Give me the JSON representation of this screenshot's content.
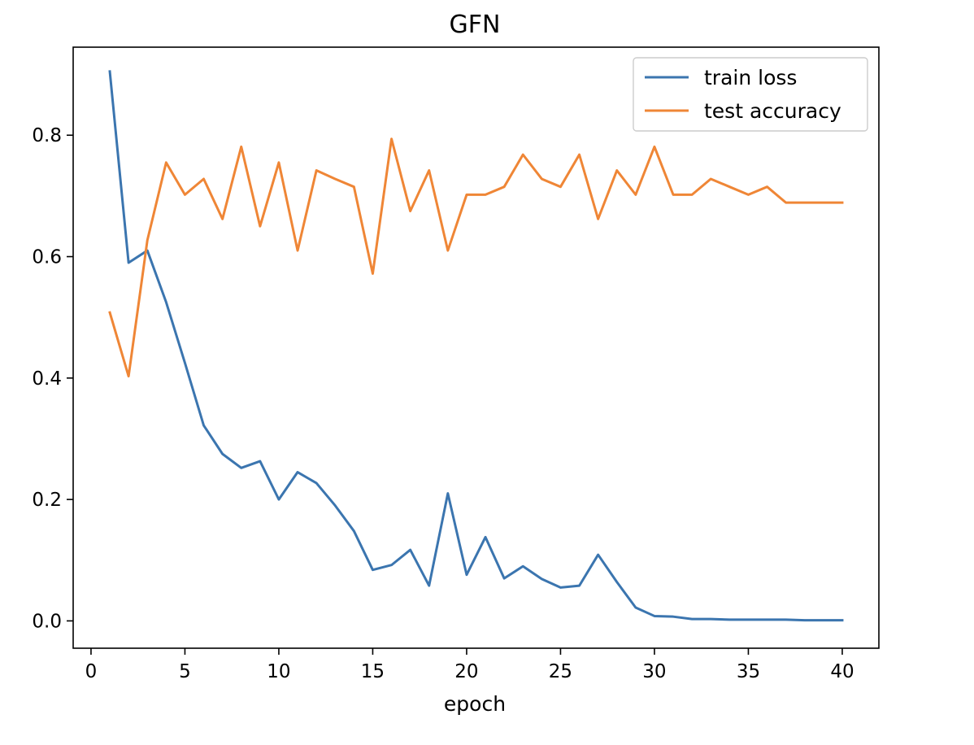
{
  "chart_data": {
    "type": "line",
    "title": "GFN",
    "xlabel": "epoch",
    "ylabel": "",
    "xlim": [
      -0.95,
      41.95
    ],
    "ylim": [
      -0.045,
      0.945
    ],
    "xticks": [
      0,
      5,
      10,
      15,
      20,
      25,
      30,
      35,
      40
    ],
    "xtick_labels": [
      "0",
      "5",
      "10",
      "15",
      "20",
      "25",
      "30",
      "35",
      "40"
    ],
    "yticks": [
      0.0,
      0.2,
      0.4,
      0.6,
      0.8
    ],
    "ytick_labels": [
      "0.0",
      "0.2",
      "0.4",
      "0.6",
      "0.8"
    ],
    "grid": false,
    "legend_position": "top-right",
    "x": [
      1,
      2,
      3,
      4,
      5,
      6,
      7,
      8,
      9,
      10,
      11,
      12,
      13,
      14,
      15,
      16,
      17,
      18,
      19,
      20,
      21,
      22,
      23,
      24,
      25,
      26,
      27,
      28,
      29,
      30,
      31,
      32,
      33,
      34,
      35,
      36,
      37,
      38,
      39,
      40
    ],
    "series": [
      {
        "name": "train loss",
        "color": "#3b75af",
        "values": [
          0.905,
          0.59,
          0.61,
          0.525,
          0.425,
          0.322,
          0.275,
          0.252,
          0.263,
          0.2,
          0.245,
          0.227,
          0.19,
          0.148,
          0.084,
          0.092,
          0.117,
          0.058,
          0.21,
          0.076,
          0.138,
          0.07,
          0.09,
          0.069,
          0.055,
          0.058,
          0.109,
          0.064,
          0.022,
          0.008,
          0.007,
          0.003,
          0.003,
          0.002,
          0.002,
          0.002,
          0.002,
          0.001,
          0.001,
          0.001
        ]
      },
      {
        "name": "test accuracy",
        "color": "#ef8636",
        "values": [
          0.508,
          0.403,
          0.627,
          0.755,
          0.702,
          0.728,
          0.662,
          0.781,
          0.65,
          0.755,
          0.61,
          0.742,
          0.728,
          0.715,
          0.572,
          0.794,
          0.675,
          0.742,
          0.61,
          0.702,
          0.702,
          0.715,
          0.768,
          0.728,
          0.715,
          0.768,
          0.662,
          0.742,
          0.702,
          0.781,
          0.702,
          0.702,
          0.728,
          0.715,
          0.702,
          0.715,
          0.689,
          0.689,
          0.689,
          0.689
        ]
      }
    ]
  }
}
